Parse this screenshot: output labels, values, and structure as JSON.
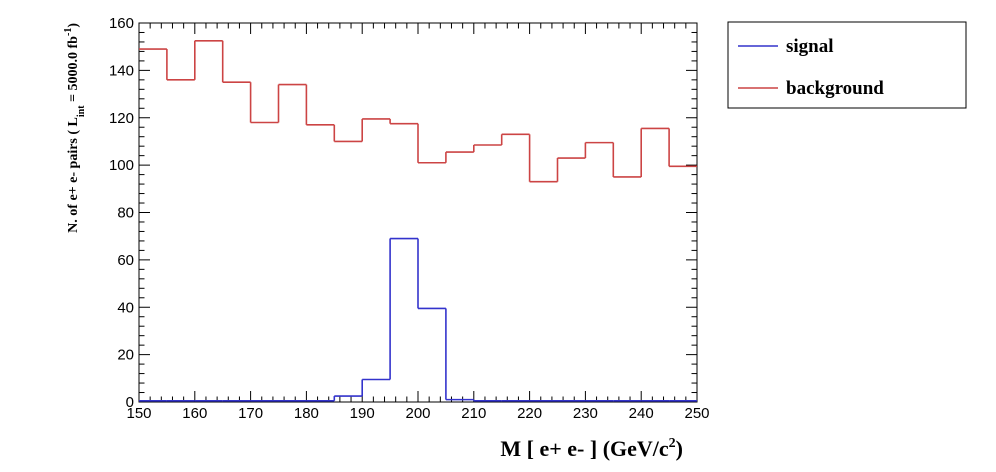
{
  "chart_data": {
    "type": "histogram",
    "xlabel": "M [ e+ e- ] (GeV/c",
    "xlabel_sup": "2",
    "xlabel_close": ")",
    "ylabel_prefix": "N. of e+ e- pairs  ( L",
    "ylabel_sub": "int",
    "ylabel_mid": " = 5000.0 fb",
    "ylabel_sup": "-1",
    "ylabel_suffix": ")",
    "xlim": [
      150,
      250
    ],
    "ylim": [
      0,
      160
    ],
    "x_ticks": [
      "150",
      "160",
      "170",
      "180",
      "190",
      "200",
      "210",
      "220",
      "230",
      "240",
      "250"
    ],
    "y_ticks": [
      "0",
      "20",
      "40",
      "60",
      "80",
      "100",
      "120",
      "140",
      "160"
    ],
    "bin_edges": [
      150,
      155,
      160,
      165,
      170,
      175,
      180,
      185,
      190,
      195,
      200,
      205,
      210,
      215,
      220,
      225,
      230,
      235,
      240,
      245,
      250
    ],
    "series": [
      {
        "name": "signal",
        "color": "#3333cc",
        "values": [
          0.5,
          0.5,
          0.5,
          0.5,
          0.5,
          0.5,
          0.5,
          2.5,
          9.5,
          69,
          39.5,
          1,
          0.5,
          0.5,
          0.5,
          0.5,
          0.5,
          0.5,
          0.5,
          0.5
        ]
      },
      {
        "name": "background",
        "color": "#cc4444",
        "values": [
          149,
          136,
          152.5,
          135,
          118,
          134,
          117,
          110,
          119.5,
          117.5,
          101,
          105.5,
          108.5,
          113,
          93,
          103,
          109.5,
          95,
          115.5,
          99.5
        ]
      }
    ],
    "legend": [
      "signal",
      "background"
    ],
    "legend_position": "top-right"
  }
}
